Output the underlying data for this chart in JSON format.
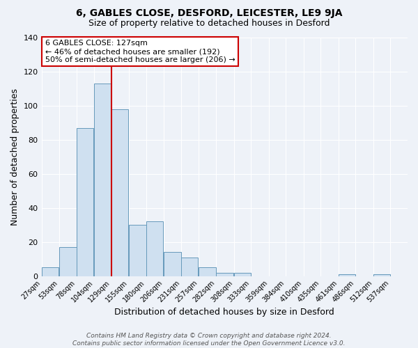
{
  "title": "6, GABLES CLOSE, DESFORD, LEICESTER, LE9 9JA",
  "subtitle": "Size of property relative to detached houses in Desford",
  "xlabel": "Distribution of detached houses by size in Desford",
  "ylabel": "Number of detached properties",
  "bar_left_edges": [
    27,
    53,
    78,
    104,
    129,
    155,
    180,
    206,
    231,
    257,
    282,
    308,
    333,
    359,
    384,
    410,
    435,
    461,
    486,
    512
  ],
  "bar_heights": [
    5,
    17,
    87,
    113,
    98,
    30,
    32,
    14,
    11,
    5,
    2,
    2,
    0,
    0,
    0,
    0,
    0,
    1,
    0,
    1
  ],
  "bin_width": 25,
  "bar_color": "#cfe0f0",
  "bar_edge_color": "#6699bb",
  "tick_labels": [
    "27sqm",
    "53sqm",
    "78sqm",
    "104sqm",
    "129sqm",
    "155sqm",
    "180sqm",
    "206sqm",
    "231sqm",
    "257sqm",
    "282sqm",
    "308sqm",
    "333sqm",
    "359sqm",
    "384sqm",
    "410sqm",
    "435sqm",
    "461sqm",
    "486sqm",
    "512sqm",
    "537sqm"
  ],
  "vline_x": 129,
  "vline_color": "#cc0000",
  "ylim": [
    0,
    140
  ],
  "yticks": [
    0,
    20,
    40,
    60,
    80,
    100,
    120,
    140
  ],
  "annotation_lines": [
    "6 GABLES CLOSE: 127sqm",
    "← 46% of detached houses are smaller (192)",
    "50% of semi-detached houses are larger (206) →"
  ],
  "annotation_box_color": "#ffffff",
  "annotation_box_edge_color": "#cc0000",
  "footer_line1": "Contains HM Land Registry data © Crown copyright and database right 2024.",
  "footer_line2": "Contains public sector information licensed under the Open Government Licence v3.0.",
  "bg_color": "#eef2f8",
  "plot_bg_color": "#eef2f8",
  "grid_color": "#ffffff"
}
